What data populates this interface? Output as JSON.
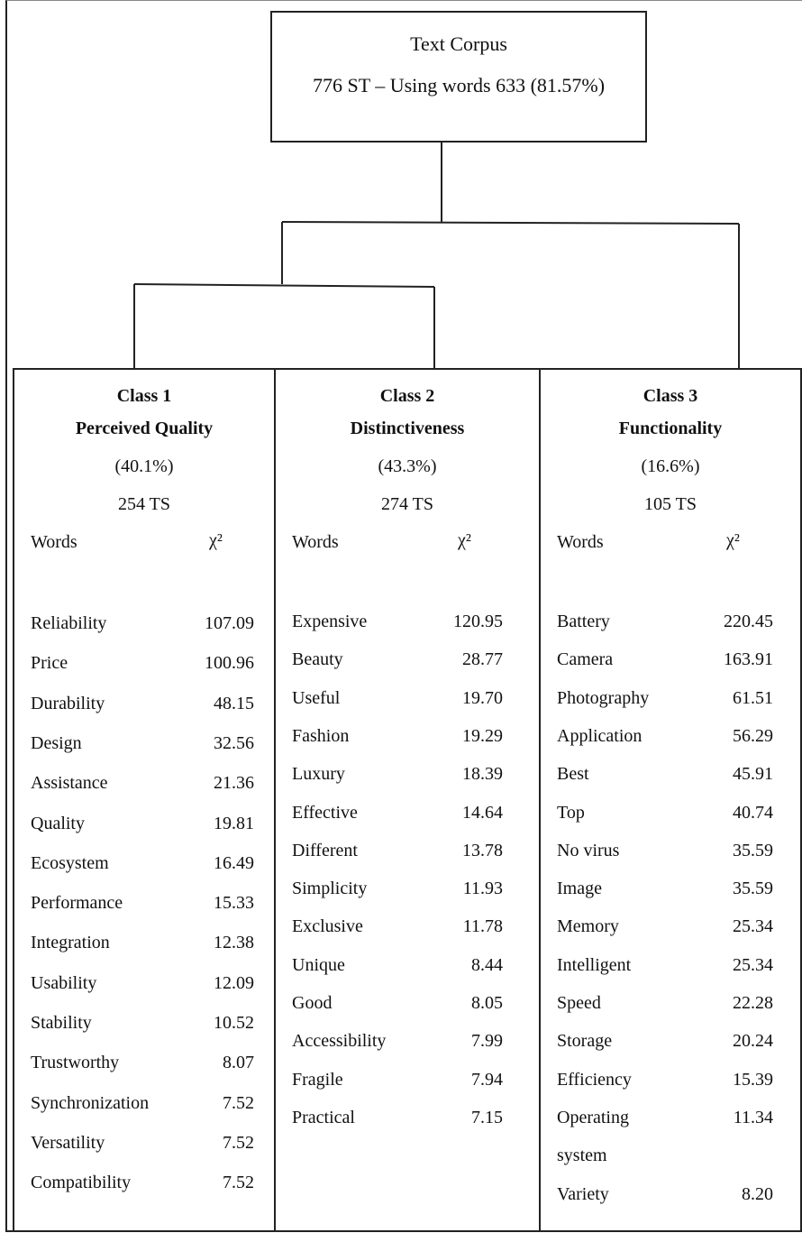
{
  "root": {
    "title": "Text Corpus",
    "subtitle": "776 ST – Using words 633 (81.57%)"
  },
  "classes": [
    {
      "name": "Class 1",
      "label": "Perceived Quality",
      "percent": "(40.1%)",
      "ts": "254 TS",
      "words_header": "Words",
      "chi_header": "χ²",
      "rows": [
        [
          "Reliability",
          "107.09"
        ],
        [
          "Price",
          "100.96"
        ],
        [
          "Durability",
          "48.15"
        ],
        [
          "Design",
          "32.56"
        ],
        [
          "Assistance",
          "21.36"
        ],
        [
          "Quality",
          "19.81"
        ],
        [
          "Ecosystem",
          "16.49"
        ],
        [
          "Performance",
          "15.33"
        ],
        [
          "Integration",
          "12.38"
        ],
        [
          "Usability",
          "12.09"
        ],
        [
          "Stability",
          "10.52"
        ],
        [
          "Trustworthy",
          "8.07"
        ],
        [
          "Synchronization",
          "7.52"
        ],
        [
          "Versatility",
          "7.52"
        ],
        [
          "Compatibility",
          "7.52"
        ]
      ]
    },
    {
      "name": "Class 2",
      "label": "Distinctiveness",
      "percent": "(43.3%)",
      "ts": "274 TS",
      "words_header": "Words",
      "chi_header": "χ²",
      "rows": [
        [
          "Expensive",
          "120.95"
        ],
        [
          "Beauty",
          "28.77"
        ],
        [
          "Useful",
          "19.70"
        ],
        [
          "Fashion",
          "19.29"
        ],
        [
          "Luxury",
          "18.39"
        ],
        [
          "Effective",
          "14.64"
        ],
        [
          "Different",
          "13.78"
        ],
        [
          "Simplicity",
          "11.93"
        ],
        [
          "Exclusive",
          "11.78"
        ],
        [
          "Unique",
          "8.44"
        ],
        [
          "Good",
          "8.05"
        ],
        [
          "Accessibility",
          "7.99"
        ],
        [
          "Fragile",
          "7.94"
        ],
        [
          "Practical",
          "7.15"
        ]
      ]
    },
    {
      "name": "Class 3",
      "label": "Functionality",
      "percent": "(16.6%)",
      "ts": "105 TS",
      "words_header": "Words",
      "chi_header": "χ²",
      "rows": [
        [
          "Battery",
          "220.45"
        ],
        [
          "Camera",
          "163.91"
        ],
        [
          "Photography",
          "61.51"
        ],
        [
          "Application",
          "56.29"
        ],
        [
          "Best",
          "45.91"
        ],
        [
          "Top",
          "40.74"
        ],
        [
          "No virus",
          "35.59"
        ],
        [
          "Image",
          "35.59"
        ],
        [
          "Memory",
          "25.34"
        ],
        [
          "Intelligent",
          "25.34"
        ],
        [
          "Speed",
          "22.28"
        ],
        [
          "Storage",
          "20.24"
        ],
        [
          "Efficiency",
          "15.39"
        ],
        [
          "Operating",
          "11.34"
        ],
        [
          "system",
          ""
        ],
        [
          "Variety",
          "8.20"
        ]
      ]
    }
  ]
}
